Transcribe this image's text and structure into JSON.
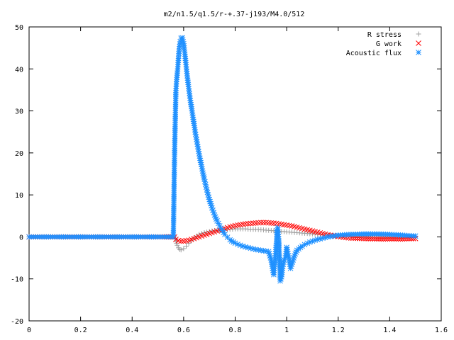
{
  "chart_data": {
    "type": "scatter",
    "title": "m2/n1.5/q1.5/r-+.37-j193/M4.0/512",
    "xlabel": "",
    "ylabel": "",
    "xlim": [
      0,
      1.6
    ],
    "ylim": [
      -20,
      50
    ],
    "x_ticks": [
      "0",
      "0.2",
      "0.4",
      "0.6",
      "0.8",
      "1",
      "1.2",
      "1.4",
      "1.6"
    ],
    "y_ticks": [
      "-20",
      "-10",
      "0",
      "10",
      "20",
      "30",
      "40",
      "50"
    ],
    "legend_position": "top-right",
    "grid": false,
    "series": [
      {
        "name": "R stress",
        "marker": "plus",
        "color": "#a0a0a0",
        "points": [
          [
            0.0,
            0
          ],
          [
            0.1,
            0
          ],
          [
            0.2,
            0
          ],
          [
            0.3,
            0
          ],
          [
            0.4,
            0
          ],
          [
            0.5,
            0
          ],
          [
            0.565,
            0
          ],
          [
            0.57,
            -1.0
          ],
          [
            0.575,
            -2.0
          ],
          [
            0.58,
            -2.6
          ],
          [
            0.585,
            -3.0
          ],
          [
            0.59,
            -3.1
          ],
          [
            0.6,
            -2.8
          ],
          [
            0.61,
            -2.2
          ],
          [
            0.62,
            -1.5
          ],
          [
            0.63,
            -0.9
          ],
          [
            0.64,
            -0.3
          ],
          [
            0.65,
            0.2
          ],
          [
            0.66,
            0.6
          ],
          [
            0.68,
            1.0
          ],
          [
            0.7,
            1.3
          ],
          [
            0.72,
            1.5
          ],
          [
            0.74,
            1.6
          ],
          [
            0.76,
            1.7
          ],
          [
            0.78,
            1.8
          ],
          [
            0.8,
            1.9
          ],
          [
            0.82,
            1.9
          ],
          [
            0.84,
            1.9
          ],
          [
            0.86,
            1.8
          ],
          [
            0.88,
            1.8
          ],
          [
            0.9,
            1.7
          ],
          [
            0.92,
            1.6
          ],
          [
            0.94,
            1.5
          ],
          [
            0.96,
            1.4
          ],
          [
            0.98,
            1.3
          ],
          [
            1.0,
            1.2
          ],
          [
            1.02,
            1.1
          ],
          [
            1.04,
            1.0
          ],
          [
            1.06,
            0.9
          ],
          [
            1.08,
            0.8
          ],
          [
            1.1,
            0.7
          ],
          [
            1.12,
            0.6
          ],
          [
            1.14,
            0.5
          ],
          [
            1.16,
            0.4
          ],
          [
            1.18,
            0.3
          ],
          [
            1.2,
            0.2
          ],
          [
            1.25,
            0.2
          ],
          [
            1.3,
            0.2
          ],
          [
            1.35,
            0.2
          ],
          [
            1.4,
            0.1
          ],
          [
            1.45,
            0.1
          ],
          [
            1.5,
            0.1
          ]
        ]
      },
      {
        "name": "G work",
        "marker": "cross",
        "color": "#ff0000",
        "points": [
          [
            0.0,
            0
          ],
          [
            0.1,
            0
          ],
          [
            0.2,
            0
          ],
          [
            0.3,
            0
          ],
          [
            0.4,
            0
          ],
          [
            0.5,
            0
          ],
          [
            0.565,
            0
          ],
          [
            0.57,
            -0.6
          ],
          [
            0.58,
            -0.9
          ],
          [
            0.59,
            -1.0
          ],
          [
            0.6,
            -1.0
          ],
          [
            0.61,
            -0.9
          ],
          [
            0.62,
            -0.8
          ],
          [
            0.63,
            -0.6
          ],
          [
            0.64,
            -0.4
          ],
          [
            0.65,
            -0.2
          ],
          [
            0.66,
            0.0
          ],
          [
            0.68,
            0.4
          ],
          [
            0.7,
            0.8
          ],
          [
            0.72,
            1.2
          ],
          [
            0.74,
            1.6
          ],
          [
            0.76,
            2.0
          ],
          [
            0.78,
            2.4
          ],
          [
            0.8,
            2.7
          ],
          [
            0.82,
            2.9
          ],
          [
            0.84,
            3.1
          ],
          [
            0.86,
            3.2
          ],
          [
            0.88,
            3.3
          ],
          [
            0.9,
            3.4
          ],
          [
            0.92,
            3.4
          ],
          [
            0.94,
            3.3
          ],
          [
            0.96,
            3.2
          ],
          [
            0.98,
            3.0
          ],
          [
            1.0,
            2.8
          ],
          [
            1.02,
            2.6
          ],
          [
            1.04,
            2.3
          ],
          [
            1.06,
            2.0
          ],
          [
            1.08,
            1.7
          ],
          [
            1.1,
            1.4
          ],
          [
            1.12,
            1.1
          ],
          [
            1.14,
            0.8
          ],
          [
            1.16,
            0.5
          ],
          [
            1.18,
            0.3
          ],
          [
            1.2,
            0.1
          ],
          [
            1.22,
            -0.1
          ],
          [
            1.25,
            -0.3
          ],
          [
            1.3,
            -0.4
          ],
          [
            1.35,
            -0.5
          ],
          [
            1.4,
            -0.5
          ],
          [
            1.45,
            -0.5
          ],
          [
            1.5,
            -0.4
          ]
        ]
      },
      {
        "name": "Acoustic flux",
        "marker": "star",
        "color": "#1e90ff",
        "points": [
          [
            0.0,
            0
          ],
          [
            0.1,
            0
          ],
          [
            0.2,
            0
          ],
          [
            0.3,
            0
          ],
          [
            0.4,
            0
          ],
          [
            0.5,
            0
          ],
          [
            0.56,
            0
          ],
          [
            0.565,
            20.5
          ],
          [
            0.57,
            34.8
          ],
          [
            0.573,
            37.5
          ],
          [
            0.577,
            40.0
          ],
          [
            0.58,
            42.5
          ],
          [
            0.583,
            44.8
          ],
          [
            0.587,
            46.5
          ],
          [
            0.59,
            47.3
          ],
          [
            0.595,
            47.4
          ],
          [
            0.6,
            46.0
          ],
          [
            0.605,
            43.5
          ],
          [
            0.61,
            40.5
          ],
          [
            0.615,
            37.8
          ],
          [
            0.62,
            35.3
          ],
          [
            0.625,
            33.0
          ],
          [
            0.63,
            31.0
          ],
          [
            0.635,
            29.0
          ],
          [
            0.64,
            27.0
          ],
          [
            0.645,
            25.0
          ],
          [
            0.65,
            23.2
          ],
          [
            0.655,
            21.5
          ],
          [
            0.66,
            19.8
          ],
          [
            0.665,
            18.2
          ],
          [
            0.67,
            16.7
          ],
          [
            0.675,
            15.2
          ],
          [
            0.68,
            13.8
          ],
          [
            0.685,
            12.5
          ],
          [
            0.69,
            11.2
          ],
          [
            0.695,
            10.0
          ],
          [
            0.7,
            8.9
          ],
          [
            0.71,
            6.9
          ],
          [
            0.72,
            5.2
          ],
          [
            0.73,
            3.8
          ],
          [
            0.74,
            2.6
          ],
          [
            0.75,
            1.5
          ],
          [
            0.76,
            0.6
          ],
          [
            0.77,
            -0.1
          ],
          [
            0.78,
            -0.7
          ],
          [
            0.8,
            -1.5
          ],
          [
            0.82,
            -2.0
          ],
          [
            0.84,
            -2.4
          ],
          [
            0.86,
            -2.7
          ],
          [
            0.88,
            -3.0
          ],
          [
            0.9,
            -3.2
          ],
          [
            0.92,
            -3.4
          ],
          [
            0.93,
            -3.5
          ],
          [
            0.935,
            -4.5
          ],
          [
            0.94,
            -5.5
          ],
          [
            0.945,
            -7.5
          ],
          [
            0.95,
            -9.0
          ],
          [
            0.955,
            -5.5
          ],
          [
            0.96,
            -1.5
          ],
          [
            0.962,
            1.5
          ],
          [
            0.965,
            2.2
          ],
          [
            0.97,
            -1.0
          ],
          [
            0.975,
            -10.5
          ],
          [
            0.98,
            -9.5
          ],
          [
            0.985,
            -7.0
          ],
          [
            0.99,
            -5.5
          ],
          [
            0.995,
            -5.0
          ],
          [
            1.0,
            -2.5
          ],
          [
            1.005,
            -4.0
          ],
          [
            1.01,
            -5.5
          ],
          [
            1.015,
            -7.5
          ],
          [
            1.02,
            -6.5
          ],
          [
            1.03,
            -4.5
          ],
          [
            1.04,
            -3.2
          ],
          [
            1.06,
            -2.2
          ],
          [
            1.08,
            -1.5
          ],
          [
            1.1,
            -1.0
          ],
          [
            1.12,
            -0.6
          ],
          [
            1.14,
            -0.3
          ],
          [
            1.16,
            0.0
          ],
          [
            1.18,
            0.2
          ],
          [
            1.2,
            0.4
          ],
          [
            1.25,
            0.6
          ],
          [
            1.3,
            0.7
          ],
          [
            1.35,
            0.7
          ],
          [
            1.4,
            0.6
          ],
          [
            1.45,
            0.4
          ],
          [
            1.5,
            0.2
          ]
        ]
      }
    ]
  }
}
